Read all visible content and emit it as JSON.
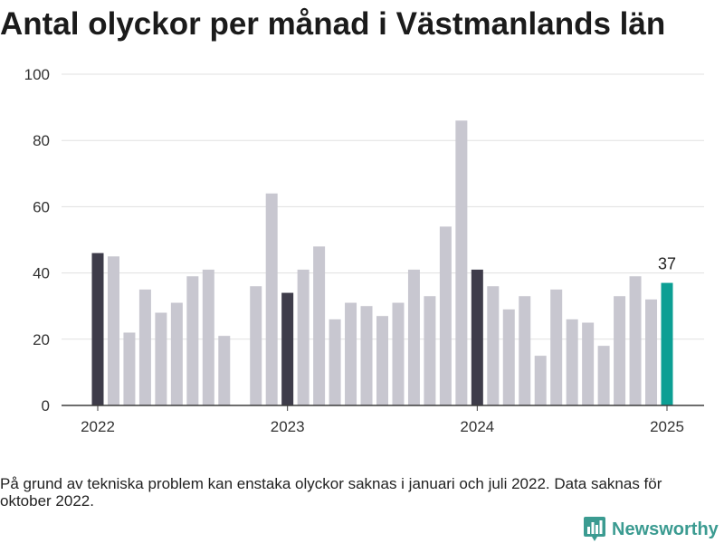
{
  "chart_data": {
    "type": "bar",
    "title": "Antal olyckor per månad i Västmanlands län",
    "x": [
      "2022-01",
      "2022-02",
      "2022-03",
      "2022-04",
      "2022-05",
      "2022-06",
      "2022-07",
      "2022-08",
      "2022-09",
      "2022-10",
      "2022-11",
      "2022-12",
      "2023-01",
      "2023-02",
      "2023-03",
      "2023-04",
      "2023-05",
      "2023-06",
      "2023-07",
      "2023-08",
      "2023-09",
      "2023-10",
      "2023-11",
      "2023-12",
      "2024-01",
      "2024-02",
      "2024-03",
      "2024-04",
      "2024-05",
      "2024-06",
      "2024-07",
      "2024-08",
      "2024-09",
      "2024-10",
      "2024-11",
      "2024-12",
      "2025-01"
    ],
    "values": [
      46,
      45,
      22,
      35,
      28,
      31,
      39,
      41,
      21,
      null,
      36,
      64,
      34,
      41,
      48,
      26,
      31,
      30,
      27,
      31,
      41,
      33,
      54,
      86,
      41,
      36,
      29,
      33,
      15,
      35,
      26,
      25,
      18,
      33,
      39,
      32,
      37
    ],
    "xticks": [
      "2022",
      "2023",
      "2024",
      "2025"
    ],
    "yticks": [
      0,
      20,
      40,
      60,
      80,
      100
    ],
    "ylim": [
      0,
      100
    ],
    "grid": true,
    "data_labels": [
      {
        "x": "2025-01",
        "text": "37"
      }
    ],
    "colors": {
      "bar": "#c8c7d0",
      "january": "#3e3c4a",
      "latest": "#0c9f94",
      "grid": "#e0e0e0",
      "axis": "#3d3d3d"
    },
    "footnote": "På grund av tekniska problem kan enstaka olyckor saknas i januari och juli 2022. Data saknas för oktober 2022."
  },
  "logo": {
    "text": "Newsworthy",
    "icon": "newsworthy-logo-icon",
    "color": "#3b9b91"
  }
}
